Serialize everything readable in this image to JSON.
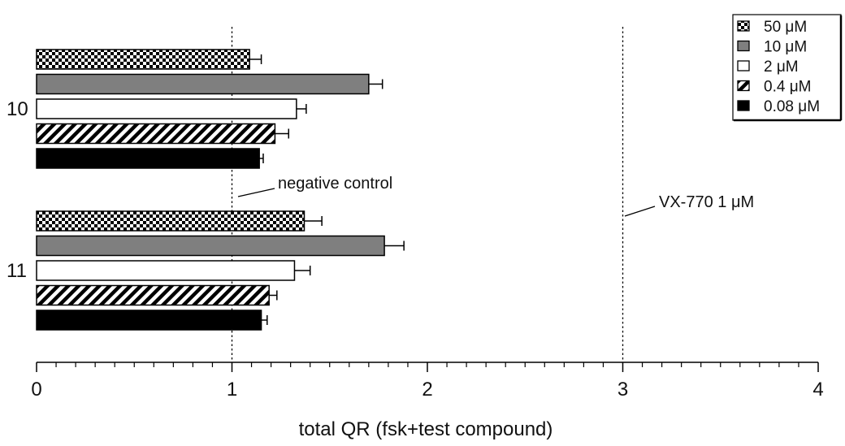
{
  "chart_data": {
    "type": "bar",
    "orientation": "horizontal",
    "title": "",
    "xlabel": "total QR (fsk+test compound)",
    "ylabel": "",
    "xlim": [
      0,
      4
    ],
    "x_ticks": [
      "0",
      "1",
      "2",
      "3",
      "4"
    ],
    "minor_ticks_per_unit": 10,
    "grid": false,
    "legend_position": "top-right",
    "categories": [
      "10",
      "11"
    ],
    "series": [
      {
        "name": "50 μM",
        "pattern": "checker",
        "values": [
          1.09,
          1.37
        ],
        "errors": [
          0.06,
          0.09
        ]
      },
      {
        "name": "10 μM",
        "pattern": "gray",
        "fill": "#7f7f7f",
        "values": [
          1.7,
          1.78
        ],
        "errors": [
          0.07,
          0.1
        ]
      },
      {
        "name": "2 μM",
        "pattern": "white",
        "fill": "#ffffff",
        "values": [
          1.33,
          1.32
        ],
        "errors": [
          0.05,
          0.08
        ]
      },
      {
        "name": "0.4 μM",
        "pattern": "diagonal",
        "values": [
          1.22,
          1.19
        ],
        "errors": [
          0.07,
          0.04
        ]
      },
      {
        "name": "0.08 μM",
        "pattern": "black",
        "fill": "#000000",
        "values": [
          1.14,
          1.15
        ],
        "errors": [
          0.02,
          0.03
        ]
      }
    ],
    "reference_lines": [
      {
        "x": 1.0,
        "label": "negative control"
      },
      {
        "x": 3.0,
        "label": "VX-770 1 μM"
      }
    ]
  }
}
